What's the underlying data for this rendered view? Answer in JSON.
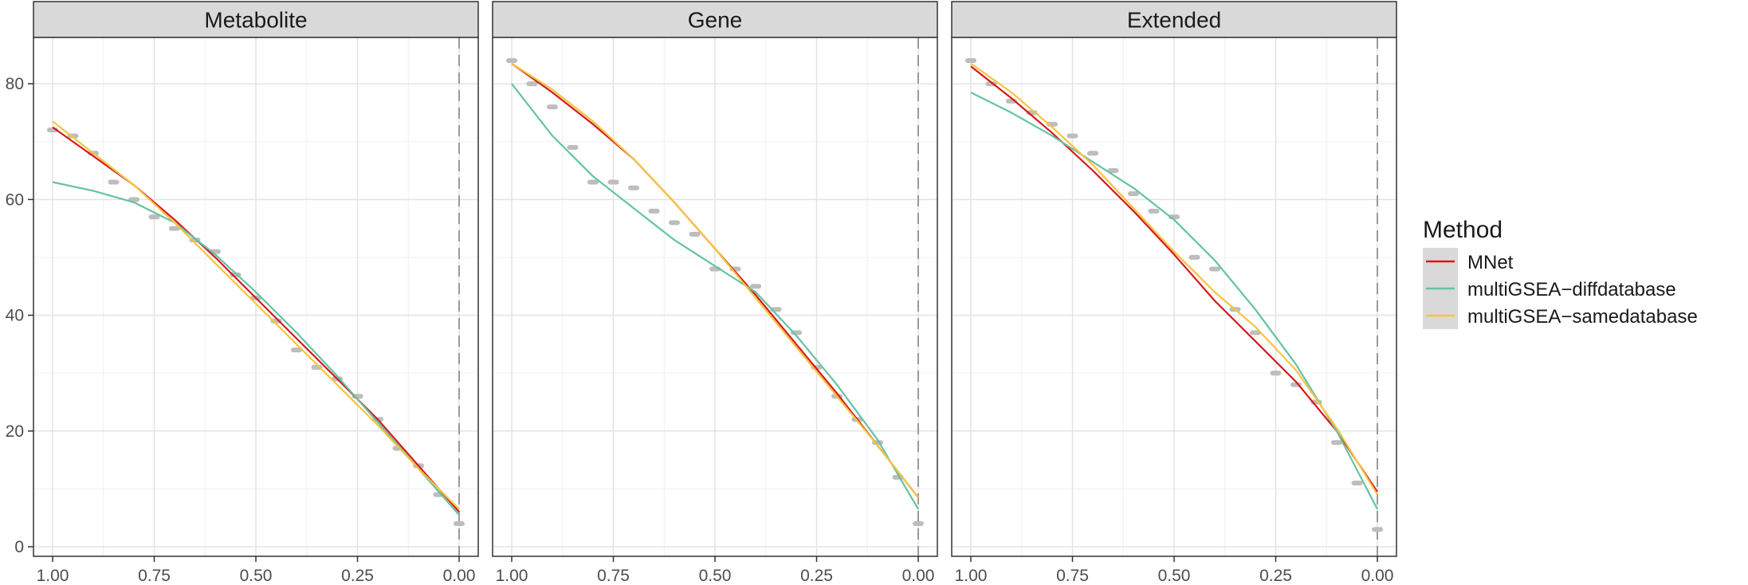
{
  "chart_data": {
    "type": "line",
    "facets": [
      "Metabolite",
      "Gene",
      "Extended"
    ],
    "xlim": [
      1.0,
      0.0
    ],
    "x_reversed": true,
    "ylim": [
      0,
      88
    ],
    "x_ticks": [
      1.0,
      0.75,
      0.5,
      0.25,
      0.0
    ],
    "x_tick_labels": [
      "1.00",
      "0.75",
      "0.50",
      "0.25",
      "0.00"
    ],
    "y_ticks": [
      0,
      20,
      40,
      60,
      80
    ],
    "y_tick_labels": [
      "0",
      "20",
      "40",
      "60",
      "80"
    ],
    "grid": true,
    "vline_x": 0.0,
    "legend": {
      "title": "Method",
      "placement": "right",
      "items": [
        {
          "label": "MNet",
          "color": "#d7191c"
        },
        {
          "label": "multiGSEA−diffdatabase",
          "color": "#66c2a5"
        },
        {
          "label": "multiGSEA−samedatabase",
          "color": "#f4c542"
        }
      ]
    },
    "point_color": "#bdbdbd",
    "panels": [
      {
        "name": "Metabolite",
        "series": [
          {
            "name": "MNet",
            "color": "#d7191c",
            "x": [
              1.0,
              0.9,
              0.8,
              0.7,
              0.6,
              0.5,
              0.4,
              0.3,
              0.2,
              0.1,
              0.0
            ],
            "y": [
              72.5,
              67.5,
              62.5,
              56.5,
              50.0,
              43.0,
              36.0,
              29.0,
              22.0,
              14.0,
              6.0
            ]
          },
          {
            "name": "multiGSEA−diffdatabase",
            "color": "#66c2a5",
            "x": [
              1.0,
              0.9,
              0.8,
              0.7,
              0.6,
              0.5,
              0.4,
              0.3,
              0.2,
              0.1,
              0.0
            ],
            "y": [
              63.0,
              61.5,
              59.5,
              56.0,
              50.5,
              44.0,
              37.0,
              29.5,
              21.5,
              13.5,
              5.5
            ]
          },
          {
            "name": "multiGSEA−samedatabase",
            "color": "#f4c542",
            "x": [
              1.0,
              0.9,
              0.8,
              0.7,
              0.6,
              0.5,
              0.4,
              0.3,
              0.2,
              0.1,
              0.0
            ],
            "y": [
              73.5,
              68.0,
              62.5,
              56.0,
              49.0,
              42.0,
              35.0,
              28.0,
              21.0,
              13.5,
              6.5
            ]
          }
        ],
        "points": {
          "x": [
            1.0,
            0.95,
            0.9,
            0.85,
            0.8,
            0.75,
            0.7,
            0.65,
            0.6,
            0.55,
            0.5,
            0.45,
            0.4,
            0.35,
            0.3,
            0.25,
            0.2,
            0.15,
            0.1,
            0.05,
            0.0
          ],
          "y": [
            72,
            71,
            68,
            63,
            60,
            57,
            55,
            53,
            51,
            47,
            43,
            39,
            34,
            31,
            29,
            26,
            22,
            17,
            14,
            9,
            4
          ]
        }
      },
      {
        "name": "Gene",
        "series": [
          {
            "name": "MNet",
            "color": "#d7191c",
            "x": [
              1.0,
              0.9,
              0.8,
              0.7,
              0.6,
              0.5,
              0.4,
              0.3,
              0.2,
              0.1,
              0.0
            ],
            "y": [
              83.5,
              78.5,
              73.0,
              67.0,
              59.5,
              51.5,
              43.5,
              35.0,
              26.5,
              17.5,
              8.5
            ]
          },
          {
            "name": "multiGSEA−diffdatabase",
            "color": "#66c2a5",
            "x": [
              1.0,
              0.9,
              0.8,
              0.7,
              0.6,
              0.5,
              0.4,
              0.3,
              0.2,
              0.1,
              0.0
            ],
            "y": [
              80.0,
              71.0,
              64.0,
              58.5,
              53.0,
              48.5,
              44.0,
              36.5,
              28.0,
              18.5,
              6.5
            ]
          },
          {
            "name": "multiGSEA−samedatabase",
            "color": "#f4c542",
            "x": [
              1.0,
              0.9,
              0.8,
              0.7,
              0.6,
              0.5,
              0.4,
              0.3,
              0.2,
              0.1,
              0.0
            ],
            "y": [
              83.5,
              79.0,
              73.5,
              67.0,
              59.5,
              51.5,
              43.0,
              34.5,
              26.0,
              17.5,
              8.5
            ]
          }
        ],
        "points": {
          "x": [
            1.0,
            0.95,
            0.9,
            0.85,
            0.8,
            0.75,
            0.7,
            0.65,
            0.6,
            0.55,
            0.5,
            0.45,
            0.4,
            0.35,
            0.3,
            0.25,
            0.2,
            0.15,
            0.1,
            0.05,
            0.0
          ],
          "y": [
            84,
            80,
            76,
            69,
            63,
            63,
            62,
            58,
            56,
            54,
            48,
            48,
            45,
            41,
            37,
            31,
            26,
            22,
            18,
            12,
            4
          ]
        }
      },
      {
        "name": "Extended",
        "series": [
          {
            "name": "MNet",
            "color": "#d7191c",
            "x": [
              1.0,
              0.9,
              0.8,
              0.7,
              0.6,
              0.5,
              0.4,
              0.3,
              0.2,
              0.1,
              0.0
            ],
            "y": [
              83.0,
              77.5,
              71.5,
              65.0,
              58.0,
              50.5,
              42.5,
              35.5,
              28.5,
              20.0,
              9.5
            ]
          },
          {
            "name": "multiGSEA−diffdatabase",
            "color": "#66c2a5",
            "x": [
              1.0,
              0.9,
              0.8,
              0.7,
              0.6,
              0.5,
              0.4,
              0.3,
              0.2,
              0.1,
              0.0
            ],
            "y": [
              78.5,
              75.0,
              71.0,
              66.5,
              62.0,
              56.5,
              49.5,
              41.0,
              31.5,
              20.0,
              6.5
            ]
          },
          {
            "name": "multiGSEA−samedatabase",
            "color": "#f4c542",
            "x": [
              1.0,
              0.9,
              0.8,
              0.7,
              0.6,
              0.5,
              0.4,
              0.3,
              0.2,
              0.1,
              0.0
            ],
            "y": [
              83.5,
              78.5,
              72.5,
              66.0,
              58.5,
              51.0,
              44.0,
              38.0,
              30.5,
              20.5,
              9.0
            ]
          }
        ],
        "points": {
          "x": [
            1.0,
            0.95,
            0.9,
            0.85,
            0.8,
            0.75,
            0.7,
            0.65,
            0.6,
            0.55,
            0.5,
            0.45,
            0.4,
            0.35,
            0.3,
            0.25,
            0.2,
            0.15,
            0.1,
            0.05,
            0.0
          ],
          "y": [
            84,
            80,
            77,
            75,
            73,
            71,
            68,
            65,
            61,
            58,
            57,
            50,
            48,
            41,
            37,
            30,
            28,
            25,
            18,
            11,
            3
          ]
        }
      }
    ]
  }
}
